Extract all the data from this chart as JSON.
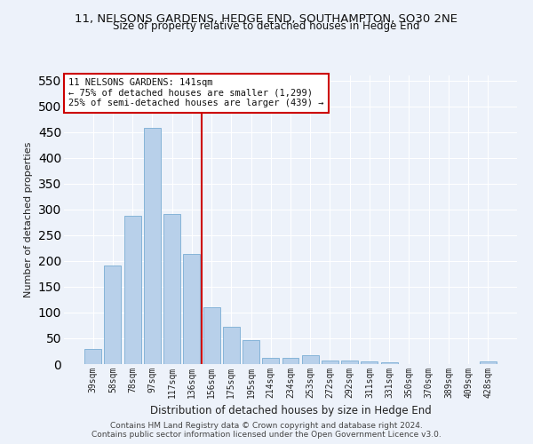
{
  "title": "11, NELSONS GARDENS, HEDGE END, SOUTHAMPTON, SO30 2NE",
  "subtitle": "Size of property relative to detached houses in Hedge End",
  "xlabel": "Distribution of detached houses by size in Hedge End",
  "ylabel": "Number of detached properties",
  "categories": [
    "39sqm",
    "58sqm",
    "78sqm",
    "97sqm",
    "117sqm",
    "136sqm",
    "156sqm",
    "175sqm",
    "195sqm",
    "214sqm",
    "234sqm",
    "253sqm",
    "272sqm",
    "292sqm",
    "311sqm",
    "331sqm",
    "350sqm",
    "370sqm",
    "389sqm",
    "409sqm",
    "428sqm"
  ],
  "values": [
    30,
    192,
    288,
    458,
    292,
    213,
    110,
    73,
    47,
    12,
    12,
    18,
    7,
    7,
    5,
    4,
    0,
    0,
    0,
    0,
    5
  ],
  "bar_color": "#b8d0ea",
  "bar_edge_color": "#7aadd4",
  "vline_color": "#cc0000",
  "vline_pos": 5.5,
  "annotation_text": "11 NELSONS GARDENS: 141sqm\n← 75% of detached houses are smaller (1,299)\n25% of semi-detached houses are larger (439) →",
  "annotation_box_color": "#ffffff",
  "annotation_box_edge": "#cc0000",
  "ylim": [
    0,
    560
  ],
  "yticks": [
    0,
    50,
    100,
    150,
    200,
    250,
    300,
    350,
    400,
    450,
    500,
    550
  ],
  "footer1": "Contains HM Land Registry data © Crown copyright and database right 2024.",
  "footer2": "Contains public sector information licensed under the Open Government Licence v3.0.",
  "bg_color": "#edf2fa",
  "grid_color": "#ffffff",
  "title_fontsize": 9.5,
  "subtitle_fontsize": 8.5
}
